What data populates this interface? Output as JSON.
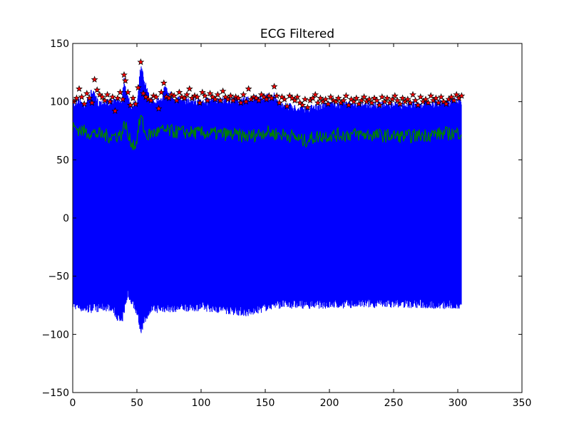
{
  "chart_data": {
    "type": "line",
    "title": "ECG Filtered",
    "xlabel": "",
    "ylabel": "",
    "xlim": [
      0,
      350
    ],
    "ylim": [
      -150,
      150
    ],
    "xticks": [
      0,
      50,
      100,
      150,
      200,
      250,
      300,
      350
    ],
    "yticks": [
      -150,
      -100,
      -50,
      0,
      50,
      100,
      150
    ],
    "grid": false,
    "legend": "none",
    "colors": {
      "signal": "#0000ff",
      "baseline": "#008000",
      "peaks": "#ff0000",
      "marker_edge": "#000000"
    },
    "signal": {
      "x_range": [
        0,
        303
      ],
      "upper_envelope": [
        [
          0,
          100
        ],
        [
          5,
          104
        ],
        [
          10,
          100
        ],
        [
          15,
          112
        ],
        [
          20,
          102
        ],
        [
          30,
          103
        ],
        [
          38,
          104
        ],
        [
          40,
          122
        ],
        [
          45,
          98
        ],
        [
          50,
          103
        ],
        [
          53,
          133
        ],
        [
          60,
          104
        ],
        [
          70,
          105
        ],
        [
          71,
          115
        ],
        [
          80,
          105
        ],
        [
          100,
          103
        ],
        [
          120,
          104
        ],
        [
          137,
          105
        ],
        [
          157,
          108
        ],
        [
          160,
          101
        ],
        [
          180,
          96
        ],
        [
          200,
          101
        ],
        [
          250,
          100
        ],
        [
          280,
          101
        ],
        [
          303,
          104
        ]
      ],
      "lower_envelope": [
        [
          0,
          -78
        ],
        [
          10,
          -82
        ],
        [
          30,
          -80
        ],
        [
          38,
          -94
        ],
        [
          43,
          -68
        ],
        [
          50,
          -84
        ],
        [
          53,
          -100
        ],
        [
          60,
          -82
        ],
        [
          100,
          -80
        ],
        [
          137,
          -85
        ],
        [
          157,
          -78
        ],
        [
          200,
          -78
        ],
        [
          250,
          -77
        ],
        [
          300,
          -79
        ],
        [
          303,
          -76
        ]
      ]
    },
    "baseline": {
      "name": "",
      "points": [
        [
          0,
          78
        ],
        [
          10,
          74
        ],
        [
          20,
          72
        ],
        [
          30,
          70
        ],
        [
          38,
          72
        ],
        [
          41,
          82
        ],
        [
          43,
          70
        ],
        [
          45,
          66
        ],
        [
          49,
          62
        ],
        [
          53,
          88
        ],
        [
          57,
          70
        ],
        [
          60,
          72
        ],
        [
          70,
          75
        ],
        [
          80,
          74
        ],
        [
          100,
          73
        ],
        [
          120,
          72
        ],
        [
          137,
          70
        ],
        [
          150,
          74
        ],
        [
          160,
          72
        ],
        [
          170,
          71
        ],
        [
          180,
          66
        ],
        [
          190,
          70
        ],
        [
          200,
          71
        ],
        [
          220,
          72
        ],
        [
          240,
          71
        ],
        [
          260,
          70
        ],
        [
          280,
          72
        ],
        [
          300,
          73
        ],
        [
          303,
          74
        ]
      ]
    },
    "peaks": {
      "x": [
        1,
        3,
        5,
        7,
        9,
        11,
        13,
        15,
        17,
        19,
        21,
        23,
        25,
        27,
        29,
        31,
        33,
        35,
        37,
        39,
        40,
        41,
        43,
        45,
        47,
        49,
        51,
        53,
        55,
        57,
        59,
        61,
        63,
        65,
        67,
        69,
        71,
        73,
        75,
        77,
        79,
        81,
        83,
        85,
        87,
        89,
        91,
        93,
        95,
        97,
        99,
        101,
        103,
        105,
        107,
        109,
        111,
        113,
        115,
        117,
        119,
        121,
        123,
        125,
        127,
        129,
        131,
        133,
        135,
        137,
        139,
        141,
        143,
        145,
        147,
        149,
        151,
        153,
        155,
        157,
        159,
        161,
        163,
        165,
        167,
        169,
        171,
        173,
        175,
        177,
        179,
        181,
        183,
        185,
        187,
        189,
        191,
        193,
        195,
        197,
        199,
        201,
        203,
        205,
        207,
        209,
        211,
        213,
        215,
        217,
        219,
        221,
        223,
        225,
        227,
        229,
        231,
        233,
        235,
        237,
        239,
        241,
        243,
        245,
        247,
        249,
        251,
        253,
        255,
        257,
        259,
        261,
        263,
        265,
        267,
        269,
        271,
        273,
        275,
        277,
        279,
        281,
        283,
        285,
        287,
        289,
        291,
        293,
        295,
        297,
        299,
        301,
        303
      ],
      "y": [
        100,
        103,
        111,
        104,
        98,
        107,
        103,
        99,
        119,
        110,
        106,
        104,
        101,
        106,
        100,
        104,
        92,
        103,
        108,
        102,
        123,
        118,
        108,
        97,
        103,
        98,
        112,
        134,
        107,
        104,
        102,
        101,
        105,
        104,
        94,
        108,
        116,
        104,
        103,
        106,
        105,
        101,
        108,
        104,
        103,
        106,
        111,
        103,
        105,
        104,
        99,
        108,
        105,
        101,
        107,
        104,
        102,
        106,
        101,
        109,
        104,
        102,
        105,
        101,
        104,
        103,
        99,
        106,
        100,
        111,
        102,
        104,
        103,
        101,
        106,
        104,
        102,
        105,
        103,
        113,
        105,
        99,
        104,
        102,
        96,
        105,
        103,
        101,
        104,
        99,
        97,
        102,
        95,
        101,
        103,
        106,
        99,
        103,
        100,
        102,
        98,
        104,
        101,
        100,
        103,
        99,
        101,
        105,
        97,
        102,
        100,
        103,
        98,
        101,
        104,
        100,
        102,
        99,
        103,
        101,
        97,
        104,
        100,
        103,
        99,
        102,
        105,
        101,
        98,
        103,
        100,
        102,
        99,
        106,
        101,
        97,
        104,
        100,
        102,
        99,
        105,
        101,
        103,
        99,
        104,
        100,
        98,
        102,
        104,
        101,
        106,
        103,
        105
      ]
    }
  },
  "page": {
    "title": "ECG Filtered",
    "x_tick_labels": [
      "0",
      "50",
      "100",
      "150",
      "200",
      "250",
      "300",
      "350"
    ],
    "y_tick_labels": [
      "−150",
      "−100",
      "−50",
      "0",
      "50",
      "100",
      "150"
    ]
  }
}
